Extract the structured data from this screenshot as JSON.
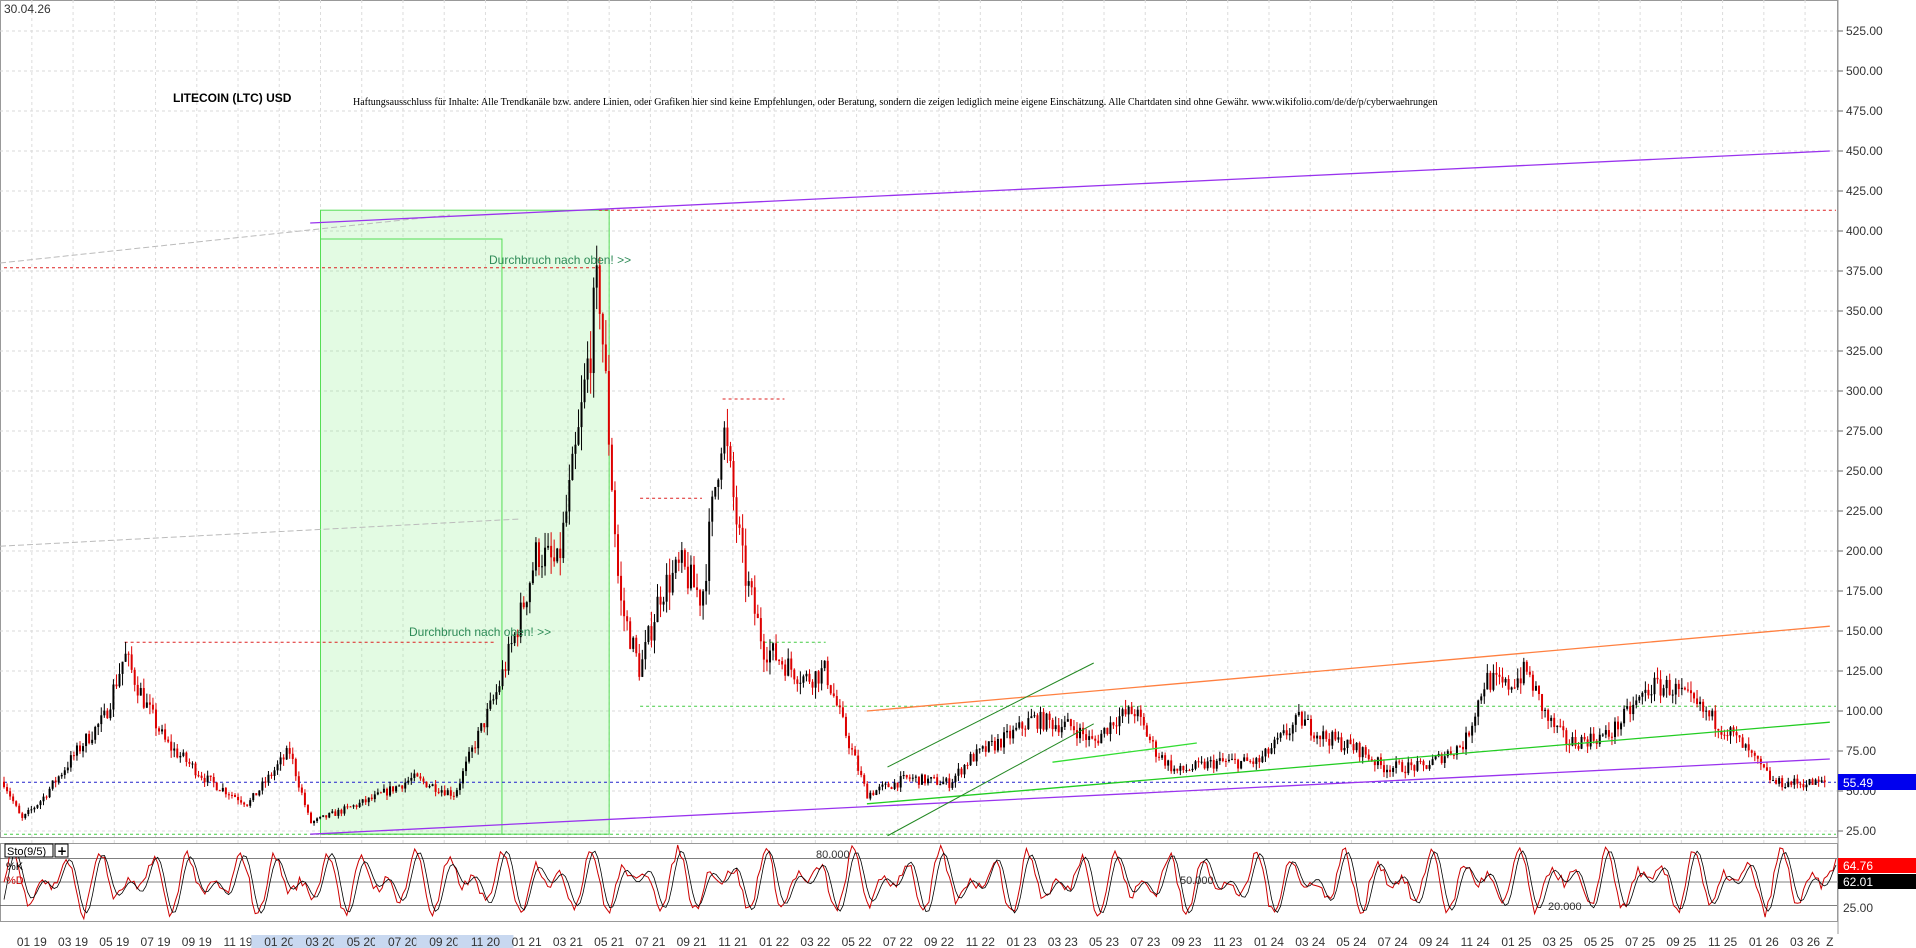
{
  "header": {
    "date": "30.04.26",
    "title": "LITECOIN (LTC) USD",
    "disclaimer": "Haftungsausschluss für Inhalte: Alle Trendkanäle bzw. andere Linien, oder Grafiken hier sind keine Empfehlungen, oder Beratung, sondern die zeigen lediglich meine eigene Einschätzung. Alle Chartdaten sind ohne Gewähr.  www.wikifolio.com/de/de/p/cyberwaehrungen"
  },
  "chart_data": [
    {
      "type": "candlestick",
      "title": "LITECOIN (LTC) USD",
      "ylim": [
        0,
        540
      ],
      "y_ticks": [
        "25.00",
        "50.00",
        "75.00",
        "100.00",
        "125.00",
        "150.00",
        "175.00",
        "200.00",
        "225.00",
        "250.00",
        "275.00",
        "300.00",
        "325.00",
        "350.00",
        "375.00",
        "400.00",
        "425.00",
        "450.00",
        "475.00",
        "500.00",
        "525.00"
      ],
      "x_ticks": [
        "01 19",
        "03 19",
        "05 19",
        "07 19",
        "09 19",
        "11 19",
        "01 20",
        "03 20",
        "05 20",
        "07 20",
        "09 20",
        "11 20",
        "01 21",
        "03 21",
        "05 21",
        "07 21",
        "09 21",
        "11 21",
        "01 22",
        "03 22",
        "05 22",
        "07 22",
        "09 22",
        "11 22",
        "01 23",
        "03 23",
        "05 23",
        "07 23",
        "09 23",
        "11 23",
        "01 24",
        "03 24",
        "05 24",
        "07 24",
        "09 24",
        "11 24",
        "01 25",
        "03 25",
        "05 25",
        "07 25",
        "09 25",
        "11 25",
        "01 26",
        "03 26",
        "Z"
      ],
      "x_range": [
        "2018-12",
        "2026-04"
      ],
      "price_path": [
        [
          "2018-12",
          60
        ],
        [
          "2019-01",
          32
        ],
        [
          "2019-02",
          45
        ],
        [
          "2019-04",
          80
        ],
        [
          "2019-05",
          95
        ],
        [
          "2019-06",
          135
        ],
        [
          "2019-07",
          105
        ],
        [
          "2019-08",
          80
        ],
        [
          "2019-10",
          57
        ],
        [
          "2019-12",
          42
        ],
        [
          "2020-02",
          75
        ],
        [
          "2020-03",
          30
        ],
        [
          "2020-06",
          45
        ],
        [
          "2020-08",
          58
        ],
        [
          "2020-10",
          48
        ],
        [
          "2020-11",
          80
        ],
        [
          "2020-12",
          110
        ],
        [
          "2021-01",
          150
        ],
        [
          "2021-02",
          200
        ],
        [
          "2021-03",
          190
        ],
        [
          "2021-04",
          270
        ],
        [
          "2021-05",
          370
        ],
        [
          "2021-06",
          170
        ],
        [
          "2021-07",
          125
        ],
        [
          "2021-08",
          175
        ],
        [
          "2021-09",
          190
        ],
        [
          "2021-10",
          170
        ],
        [
          "2021-11",
          280
        ],
        [
          "2021-12",
          190
        ],
        [
          "2022-01",
          140
        ],
        [
          "2022-03",
          120
        ],
        [
          "2022-04",
          125
        ],
        [
          "2022-05",
          85
        ],
        [
          "2022-06",
          48
        ],
        [
          "2022-08",
          58
        ],
        [
          "2022-10",
          55
        ],
        [
          "2022-11",
          70
        ],
        [
          "2023-01",
          85
        ],
        [
          "2023-02",
          95
        ],
        [
          "2023-04",
          90
        ],
        [
          "2023-05",
          80
        ],
        [
          "2023-06",
          95
        ],
        [
          "2023-07",
          100
        ],
        [
          "2023-08",
          75
        ],
        [
          "2023-09",
          62
        ],
        [
          "2023-11",
          68
        ],
        [
          "2024-01",
          68
        ],
        [
          "2024-03",
          95
        ],
        [
          "2024-04",
          85
        ],
        [
          "2024-06",
          75
        ],
        [
          "2024-07",
          65
        ],
        [
          "2024-09",
          65
        ],
        [
          "2024-11",
          80
        ],
        [
          "2024-12",
          120
        ],
        [
          "2025-01",
          115
        ],
        [
          "2025-02",
          125
        ],
        [
          "2025-03",
          95
        ],
        [
          "2025-04",
          80
        ],
        [
          "2025-06",
          85
        ],
        [
          "2025-07",
          100
        ],
        [
          "2025-08",
          115
        ],
        [
          "2025-09",
          115
        ],
        [
          "2025-10",
          105
        ],
        [
          "2025-11",
          95
        ],
        [
          "2025-12",
          85
        ],
        [
          "2026-01",
          70
        ],
        [
          "2026-02",
          55
        ],
        [
          "2026-04",
          55
        ]
      ],
      "reference_levels": [
        413,
        377,
        295,
        233,
        143,
        103,
        55.49,
        23
      ],
      "trendlines": [
        {
          "color": "#9933ee",
          "from": [
            "2020-03",
            405
          ],
          "to": [
            "2026-04",
            450
          ]
        },
        {
          "color": "#9933ee",
          "from": [
            "2020-03",
            23
          ],
          "to": [
            "2026-04",
            70
          ]
        },
        {
          "color": "#ff8040",
          "from": [
            "2022-06",
            100
          ],
          "to": [
            "2026-04",
            153
          ]
        },
        {
          "color": "#22cc22",
          "from": [
            "2022-06",
            42
          ],
          "to": [
            "2026-04",
            93
          ]
        }
      ],
      "annotations": [
        "Durchbruch nach oben! >>",
        "Durchbruch nach oben! >>"
      ],
      "last_price": "55.49"
    },
    {
      "type": "line",
      "indicator": "Sto(9/5)",
      "series": [
        {
          "name": "%K",
          "value": "64.76",
          "color": "#cc0000"
        },
        {
          "name": "%D",
          "value": "62.01",
          "color": "#000000"
        }
      ],
      "levels": [
        "80.000",
        "50.000",
        "20.000"
      ],
      "ylim": [
        0,
        100
      ],
      "y_ticks": [
        "25.00"
      ]
    }
  ]
}
